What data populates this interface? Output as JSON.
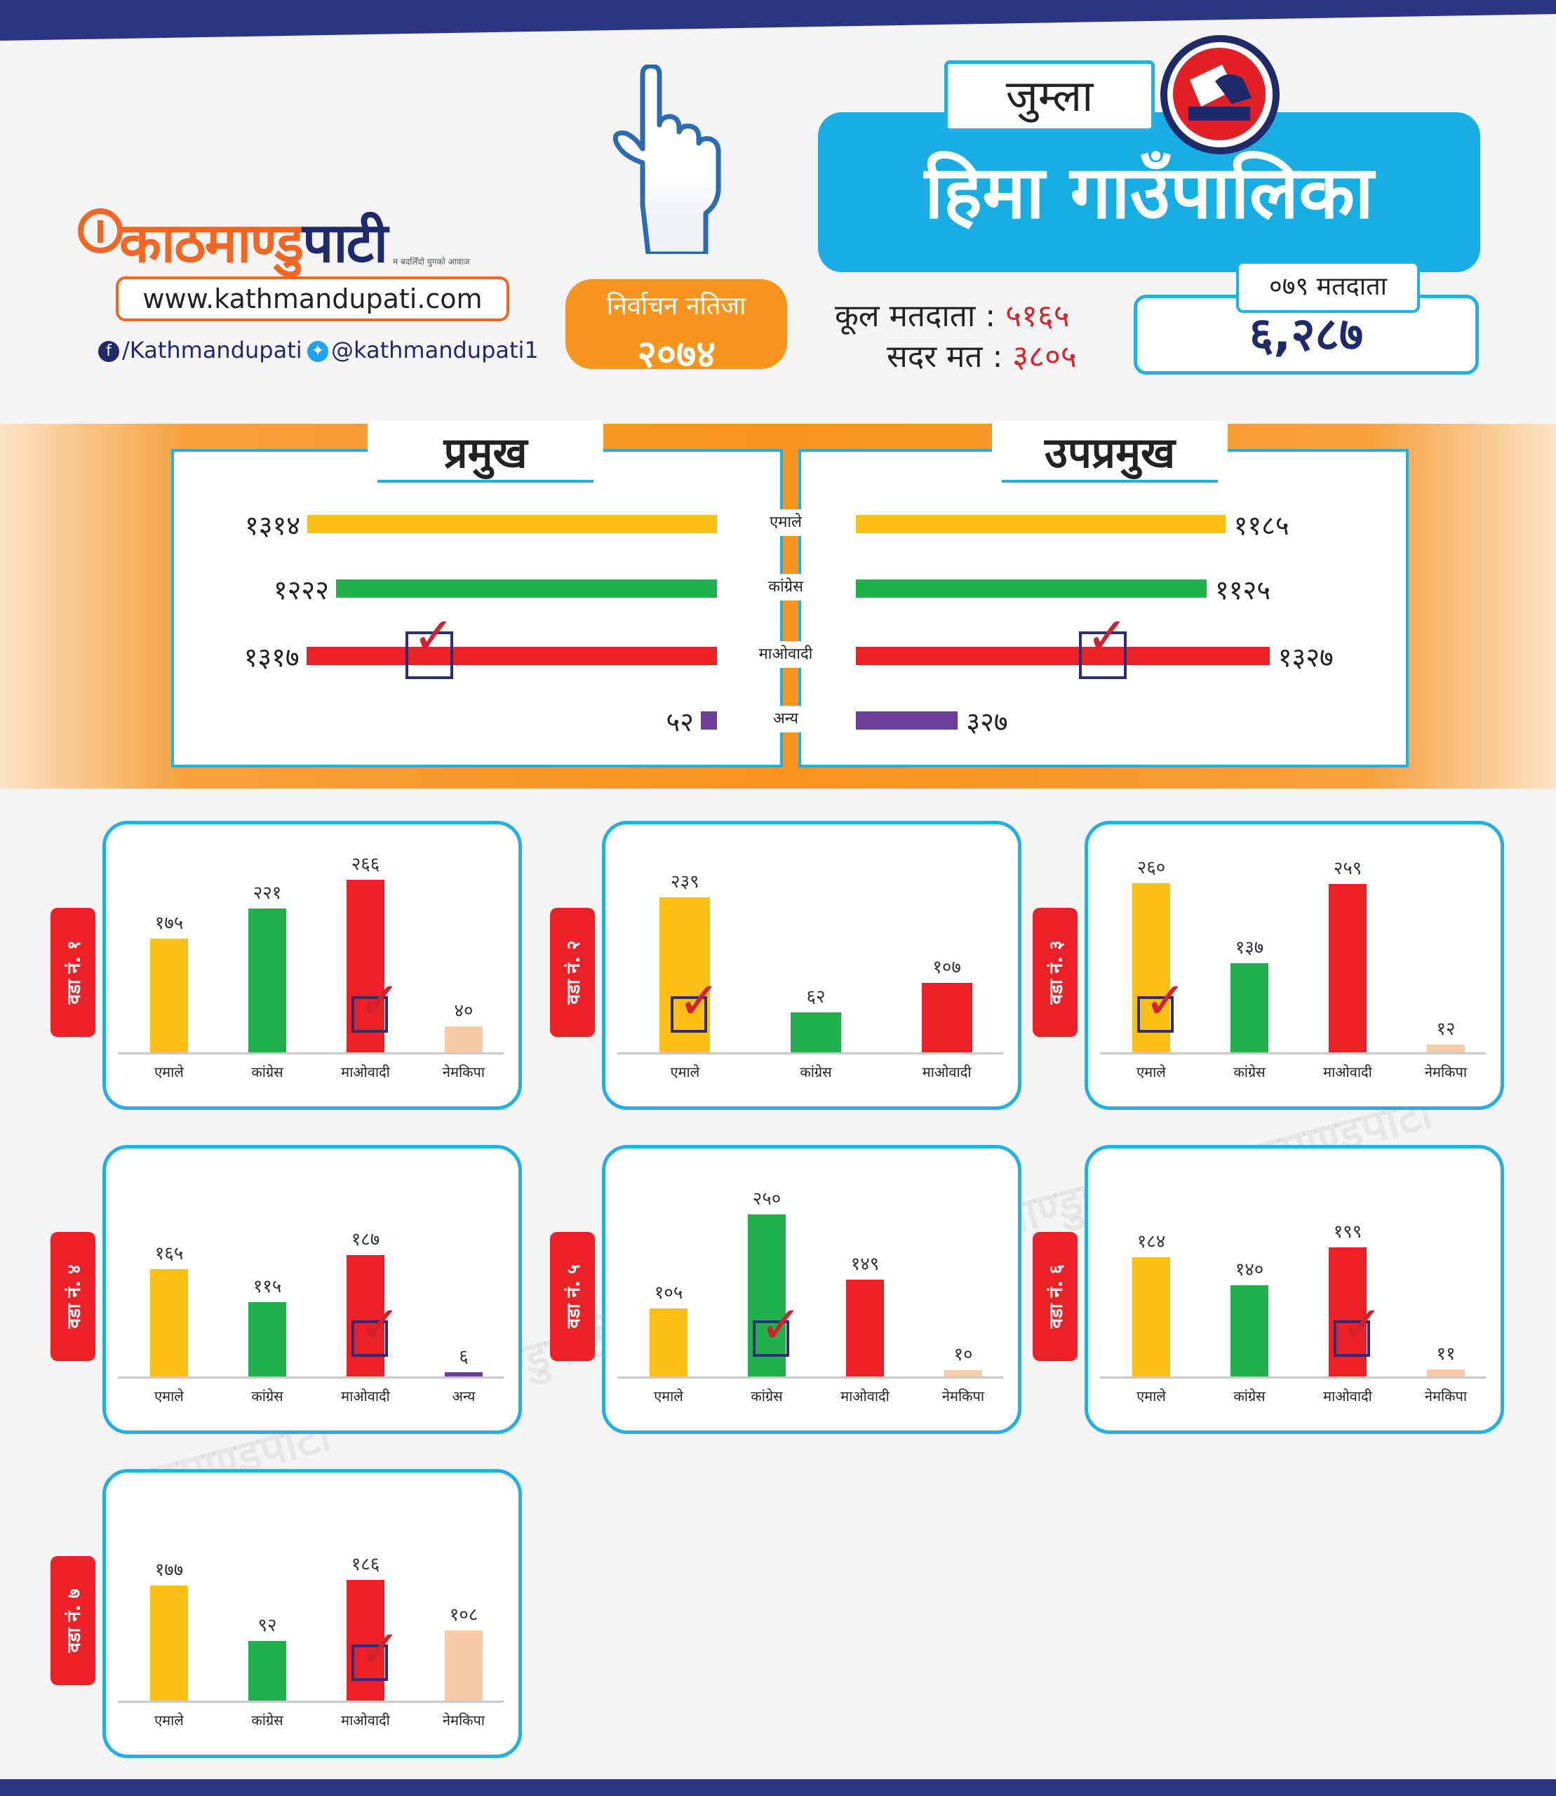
{
  "header": {
    "brand_orange": "काठमाण्डु",
    "brand_dark": "पाटी",
    "brand_tagline": "म बदलिँदो युगको आवाज",
    "url": "www.kathmandupati.com",
    "facebook": "/Kathmandupati",
    "twitter": "@kathmandupati1",
    "badge_line1": "निर्वाचन नतिजा",
    "badge_line2": "२०७४",
    "district": "जुम्ला",
    "municipality": "हिमा गाउँपालिका",
    "total_voters_label": "कूल मतदाता :",
    "total_voters_value": "५१६५",
    "valid_votes_label": "सदर मत :",
    "valid_votes_value": "३८०५",
    "voters79_label": "०७९ मतदाता",
    "voters79_value": "६,२८७"
  },
  "colors": {
    "yellow": "#fbbf16",
    "green": "#21b04b",
    "red": "#ec2127",
    "purple": "#6b3e98",
    "peach": "#f9cba6",
    "blue": "#18aee4",
    "navy": "#1f2a6b",
    "orange": "#f7941d"
  },
  "icons": [
    "hand-index-icon",
    "ballot-logo-icon",
    "facebook-icon",
    "twitter-icon",
    "checkmark-icon"
  ],
  "summary": {
    "mayor_title": "प्रमुख",
    "deputy_title": "उपप्रमुख",
    "parties": [
      "एमाले",
      "कांग्रेस",
      "माओवादी",
      "अन्य"
    ]
  },
  "chart_data": [
    {
      "type": "bar",
      "orientation": "horizontal",
      "title": "प्रमुख",
      "categories": [
        "एमाले",
        "कांग्रेस",
        "माओवादी",
        "अन्य"
      ],
      "values": [
        1314,
        1222,
        1317,
        52
      ],
      "value_labels": [
        "१३१४",
        "१२२२",
        "१३१७",
        "५२"
      ],
      "colors": [
        "yellow",
        "green",
        "red",
        "purple"
      ],
      "winner": "माओवादी"
    },
    {
      "type": "bar",
      "orientation": "horizontal",
      "title": "उपप्रमुख",
      "categories": [
        "एमाले",
        "कांग्रेस",
        "माओवादी",
        "अन्य"
      ],
      "values": [
        1185,
        1125,
        1327,
        327
      ],
      "value_labels": [
        "११८५",
        "११२५",
        "१३२७",
        "३२७"
      ],
      "colors": [
        "yellow",
        "green",
        "red",
        "purple"
      ],
      "winner": "माओवादी"
    },
    {
      "type": "bar",
      "ward": "वडा नं. १",
      "categories": [
        "एमाले",
        "कांग्रेस",
        "माओवादी",
        "नेमकिपा"
      ],
      "values": [
        175,
        221,
        266,
        40
      ],
      "value_labels": [
        "१७५",
        "२२१",
        "२६६",
        "४०"
      ],
      "colors": [
        "yellow",
        "green",
        "red",
        "peach"
      ],
      "winner": "माओवादी"
    },
    {
      "type": "bar",
      "ward": "वडा नं. २",
      "categories": [
        "एमाले",
        "कांग्रेस",
        "माओवादी"
      ],
      "values": [
        239,
        62,
        107
      ],
      "value_labels": [
        "२३९",
        "६२",
        "१०७"
      ],
      "colors": [
        "yellow",
        "green",
        "red"
      ],
      "winner": "एमाले"
    },
    {
      "type": "bar",
      "ward": "वडा नं. ३",
      "categories": [
        "एमाले",
        "कांग्रेस",
        "माओवादी",
        "नेमकिपा"
      ],
      "values": [
        260,
        137,
        259,
        12
      ],
      "value_labels": [
        "२६०",
        "१३७",
        "२५९",
        "१२"
      ],
      "colors": [
        "yellow",
        "green",
        "red",
        "peach"
      ],
      "winner": "एमाले"
    },
    {
      "type": "bar",
      "ward": "वडा नं. ४",
      "categories": [
        "एमाले",
        "कांग्रेस",
        "माओवादी",
        "अन्य"
      ],
      "values": [
        165,
        115,
        187,
        6
      ],
      "value_labels": [
        "१६५",
        "११५",
        "१८७",
        "६"
      ],
      "colors": [
        "yellow",
        "green",
        "red",
        "purple"
      ],
      "winner": "माओवादी"
    },
    {
      "type": "bar",
      "ward": "वडा नं. ५",
      "categories": [
        "एमाले",
        "कांग्रेस",
        "माओवादी",
        "नेमकिपा"
      ],
      "values": [
        105,
        250,
        149,
        10
      ],
      "value_labels": [
        "१०५",
        "२५०",
        "१४९",
        "१०"
      ],
      "colors": [
        "yellow",
        "green",
        "red",
        "peach"
      ],
      "winner": "कांग्रेस"
    },
    {
      "type": "bar",
      "ward": "वडा नं. ६",
      "categories": [
        "एमाले",
        "कांग्रेस",
        "माओवादी",
        "नेमकिपा"
      ],
      "values": [
        184,
        140,
        199,
        11
      ],
      "value_labels": [
        "१८४",
        "१४०",
        "१९९",
        "११"
      ],
      "colors": [
        "yellow",
        "green",
        "red",
        "peach"
      ],
      "winner": "माओवादी"
    },
    {
      "type": "bar",
      "ward": "वडा नं. ७",
      "categories": [
        "एमाले",
        "कांग्रेस",
        "माओवादी",
        "नेमकिपा"
      ],
      "values": [
        177,
        92,
        186,
        108
      ],
      "value_labels": [
        "१७७",
        "९२",
        "१८६",
        "१०८"
      ],
      "colors": [
        "yellow",
        "green",
        "red",
        "peach"
      ],
      "winner": "माओवादी"
    }
  ]
}
